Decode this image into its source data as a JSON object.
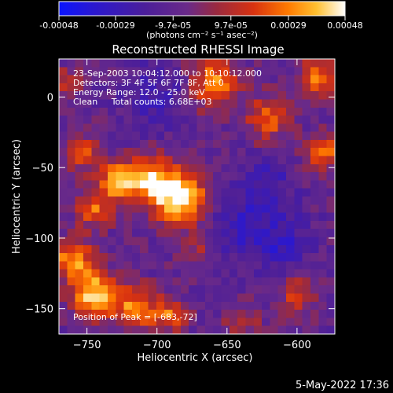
{
  "colors": {
    "background": "#000000",
    "foreground": "#ffffff",
    "colormap": [
      "#0a14ff",
      "#3a1aa8",
      "#5a2a9a",
      "#7a2a70",
      "#c0281a",
      "#ff5a00",
      "#ffb020",
      "#fff8c0",
      "#ffffff"
    ]
  },
  "colorbar": {
    "range": [
      -0.00048,
      0.00048
    ],
    "tick_labels": [
      "-0.00048",
      "-0.00029",
      "-9.7e-05",
      "9.7e-05",
      "0.00029",
      "0.00048"
    ],
    "tick_values": [
      -0.00048,
      -0.00029,
      -9.7e-05,
      9.7e-05,
      0.00029,
      0.00048
    ],
    "unit_label": "(photons cm⁻² s⁻¹ asec⁻²)"
  },
  "chart_data": {
    "type": "heatmap",
    "title": "Reconstructed RHESSI Image",
    "xlabel": "Heliocentric X (arcsec)",
    "ylabel": "Heliocentric Y (arcsec)",
    "xlim": [
      -770,
      -573
    ],
    "ylim": [
      -168,
      27
    ],
    "x_ticks": [
      -750,
      -700,
      -650,
      -600
    ],
    "y_ticks": [
      0,
      -50,
      -100,
      -150
    ],
    "x_tick_labels": [
      "−750",
      "−700",
      "−650",
      "−600"
    ],
    "y_tick_labels": [
      "0",
      "−50",
      "−100",
      "−150"
    ],
    "colormap_range": [
      -0.00048,
      0.00048
    ],
    "peak": {
      "x": -683,
      "y": -72
    },
    "grid_description": "34 x 34 pixel image; values in photons cm^-2 s^-1 asec^-2, bright source near (-683,-72), bright emission along left and lower-left edges and upper right, negative (blue/purple) background at centre and right",
    "annotations": [
      "23-Sep-2003 10:04:12.000 to 10:10:12.000",
      "Detectors: 3F 4F 5F 6F 7F 8F, Att 0",
      "Energy Range: 12.0 - 25.0 keV",
      "Clean     Total counts: 6.68E+03",
      "Position of Peak = [-683,-72]"
    ]
  },
  "footer": {
    "date_stamp": "5-May-2022 17:36"
  }
}
